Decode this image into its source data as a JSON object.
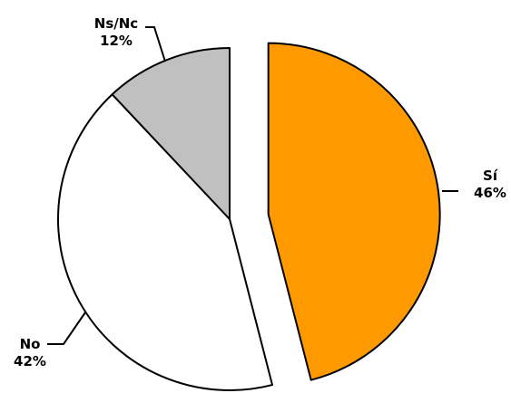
{
  "chart_data": {
    "type": "pie",
    "title": "",
    "slices": [
      {
        "label": "Sí",
        "value": 46,
        "value_label": "46%",
        "color": "#FF9900",
        "exploded": true
      },
      {
        "label": "No",
        "value": 42,
        "value_label": "42%",
        "color": "#FFFFFF",
        "exploded": false
      },
      {
        "label": "Ns/Nc",
        "value": 12,
        "value_label": "12%",
        "color": "#C0C0C0",
        "exploded": false
      }
    ],
    "start": "top",
    "direction": "clockwise",
    "legend": "none"
  }
}
